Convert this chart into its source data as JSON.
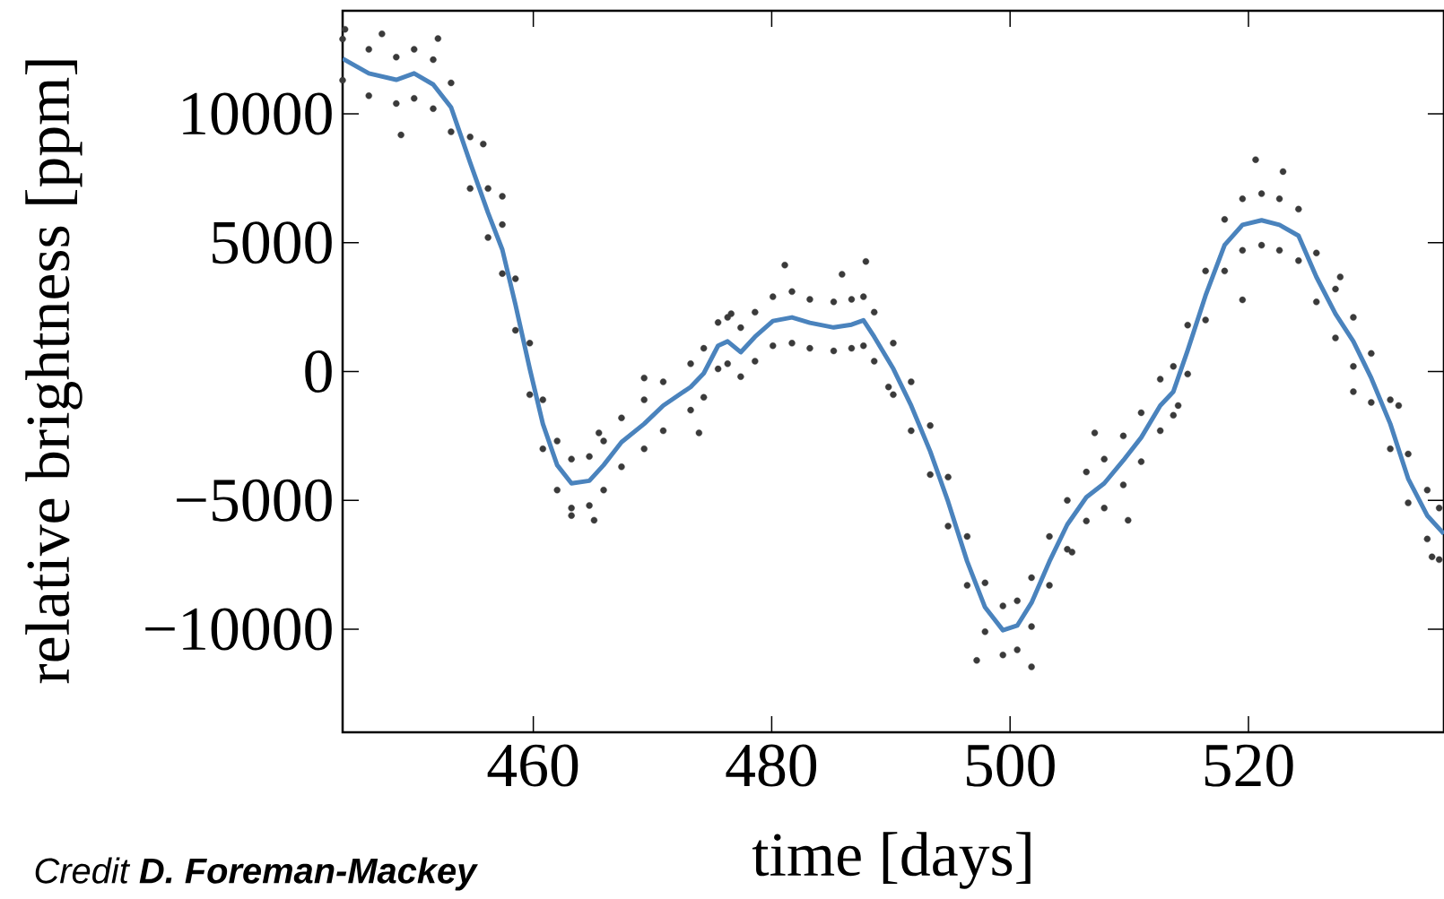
{
  "chart_data": {
    "type": "scatter",
    "xlabel": "time [days]",
    "ylabel": "relative brightness [ppm]",
    "xlim": [
      444,
      536.4
    ],
    "ylim": [
      -14000,
      14000
    ],
    "xticks": [
      460,
      480,
      500,
      520
    ],
    "yticks": [
      {
        "value": -10000,
        "label": "−10000"
      },
      {
        "value": -5000,
        "label": "−5000"
      },
      0,
      5000,
      10000
    ],
    "grid": false,
    "annotations": [
      "Credit **D. Foreman-Mackey**"
    ],
    "series": [
      {
        "color": "#3a3a3a",
        "marker": "circle",
        "x": [
          444,
          444,
          446.2,
          446.2,
          448.5,
          448.5,
          450,
          450,
          451.6,
          451.6,
          453.1,
          453.1,
          454.7,
          454.7,
          456.2,
          456.2,
          457.4,
          457.4,
          458.5,
          458.5,
          459.7,
          459.7,
          460.8,
          460.8,
          462,
          462,
          463.2,
          463.2,
          464.7,
          464.7,
          465.9,
          465.9,
          467.4,
          467.4,
          469.3,
          469.3,
          470.9,
          470.9,
          473.2,
          473.2,
          474.3,
          474.3,
          475.5,
          475.5,
          476.3,
          476.3,
          477.4,
          477.4,
          478.6,
          478.6,
          480.1,
          480.1,
          481.7,
          481.7,
          483.2,
          483.2,
          485.2,
          485.2,
          486.7,
          486.7,
          487.7,
          487.7,
          488.6,
          488.6,
          490.2,
          490.2,
          491.7,
          491.7,
          493.3,
          493.3,
          494.8,
          494.8,
          496.4,
          496.4,
          497.9,
          497.9,
          499.4,
          499.4,
          500.6,
          500.6,
          501.8,
          501.8,
          503.3,
          503.3,
          504.8,
          504.8,
          506.4,
          506.4,
          507.9,
          507.9,
          509.5,
          509.5,
          511,
          511,
          512.6,
          512.6,
          513.7,
          513.7,
          514.9,
          514.9,
          516.4,
          516.4,
          518,
          518,
          519.5,
          519.5,
          521.1,
          521.1,
          522.6,
          522.6,
          524.2,
          524.2,
          525.7,
          525.7,
          527.3,
          527.3,
          528.8,
          528.8,
          530.3,
          530.3,
          531.9,
          531.9,
          533.4,
          533.4,
          535,
          535,
          536,
          536,
          444.2,
          447.3,
          452,
          448.9,
          455.8,
          457.4,
          463.2,
          465.1,
          473.9,
          476.6,
          481.1,
          485.9,
          487.9,
          489.8,
          497.2,
          501.8,
          505.2,
          509.9,
          514.1,
          520.6,
          522.9,
          519.5,
          528.8,
          532.6,
          535.4,
          527.7,
          507.1,
          469.3,
          465.5
        ],
        "values": [
          12900,
          11300,
          12500,
          10700,
          12200,
          10400,
          12500,
          10600,
          12100,
          10200,
          11200,
          9300,
          9100,
          7100,
          7100,
          5200,
          5700,
          3800,
          3600,
          1600,
          1100,
          -900,
          -1100,
          -3000,
          -2700,
          -4600,
          -3400,
          -5300,
          -3300,
          -5200,
          -2700,
          -4600,
          -1800,
          -3700,
          -1100,
          -3000,
          -400,
          -2300,
          300,
          -1500,
          900,
          -1000,
          1900,
          100,
          2100,
          300,
          1700,
          -200,
          2300,
          400,
          2900,
          1000,
          3100,
          1100,
          2800,
          900,
          2700,
          800,
          2800,
          900,
          2900,
          1000,
          2300,
          400,
          1100,
          -900,
          -400,
          -2300,
          -2100,
          -4000,
          -4100,
          -6000,
          -6400,
          -8300,
          -8200,
          -10100,
          -9100,
          -11000,
          -8900,
          -10800,
          -8000,
          -9900,
          -6400,
          -8300,
          -5000,
          -6900,
          -3900,
          -5800,
          -3400,
          -5300,
          -2500,
          -4400,
          -1600,
          -3500,
          -300,
          -2300,
          200,
          -1700,
          1800,
          -100,
          3900,
          2000,
          5900,
          3900,
          6700,
          4700,
          6900,
          4900,
          6700,
          4700,
          6300,
          4300,
          4600,
          2700,
          3200,
          1300,
          2100,
          200,
          700,
          -1200,
          -1100,
          -3000,
          -3200,
          -5100,
          -4600,
          -6500,
          -5300,
          -7300,
          13280,
          13100,
          12920,
          9180,
          8830,
          6800,
          -5590,
          -5770,
          -2380,
          2240,
          4130,
          3770,
          4270,
          -600,
          -11210,
          -11460,
          -7010,
          -5770,
          -1320,
          8220,
          7760,
          2780,
          -780,
          -1320,
          -7190,
          3670,
          -2380,
          -250,
          -2380
        ]
      },
      {
        "type": "line",
        "color": "#4a83bd",
        "marker": "none",
        "x": [
          444,
          446.2,
          448.5,
          450,
          451.6,
          453.1,
          454.7,
          456.2,
          457.4,
          458.5,
          459.7,
          460.8,
          462,
          463.2,
          464.7,
          465.9,
          467.4,
          469.3,
          470.9,
          473.2,
          474.3,
          475.5,
          476.3,
          477.4,
          478.6,
          480.1,
          481.7,
          483.2,
          485.2,
          486.7,
          487.7,
          488.6,
          490.2,
          491.7,
          493.3,
          494.8,
          496.4,
          497.9,
          499.4,
          500.6,
          501.8,
          503.3,
          504.8,
          506.4,
          507.9,
          509.5,
          511,
          512.6,
          513.7,
          514.9,
          516.4,
          518,
          519.5,
          521.1,
          522.6,
          524.2,
          525.7,
          527.3,
          528.8,
          530.3,
          531.9,
          533.4,
          535,
          536.4
        ],
        "values": [
          12140,
          11570,
          11320,
          11570,
          11140,
          10250,
          8110,
          6160,
          4730,
          2600,
          110,
          -2030,
          -3630,
          -4340,
          -4240,
          -3630,
          -2740,
          -2030,
          -1320,
          -600,
          -70,
          1000,
          1170,
          750,
          1350,
          1960,
          2100,
          1890,
          1710,
          1820,
          1990,
          1350,
          110,
          -1320,
          -3100,
          -5050,
          -7370,
          -9150,
          -10040,
          -9860,
          -8970,
          -7370,
          -5940,
          -4880,
          -4340,
          -3450,
          -2560,
          -1320,
          -780,
          820,
          2950,
          4910,
          5690,
          5870,
          5690,
          5270,
          3670,
          2240,
          1170,
          -250,
          -2030,
          -4160,
          -5590,
          -6300
        ]
      }
    ]
  }
}
